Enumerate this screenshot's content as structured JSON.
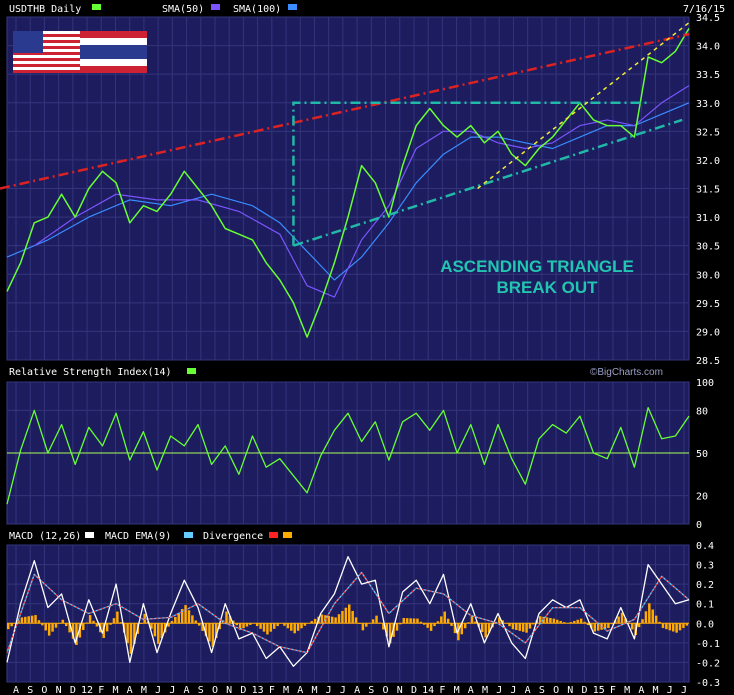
{
  "chart_data": [
    {
      "type": "line",
      "title": "USDTHB Daily",
      "date_label": "7/16/15",
      "legend": [
        {
          "label": "USDTHB Daily",
          "color": "#66ff33"
        },
        {
          "label": "SMA(50)",
          "color": "#7a55ff"
        },
        {
          "label": "SMA(100)",
          "color": "#3a8cff"
        }
      ],
      "ylim": [
        28.5,
        34.5
      ],
      "yticks": [
        "34.5",
        "34.0",
        "33.5",
        "33.0",
        "32.5",
        "32.0",
        "31.5",
        "31.0",
        "30.5",
        "30.0",
        "29.5",
        "29.0",
        "28.5"
      ],
      "annotation": [
        "ASCENDING TRIANGLE",
        "BREAK OUT"
      ],
      "series": [
        {
          "name": "USDTHB Daily",
          "color": "#66ff33",
          "x": [
            0,
            2,
            4,
            6,
            8,
            10,
            12,
            14,
            16,
            18,
            20,
            22,
            24,
            26,
            28,
            30,
            32,
            34,
            36,
            38,
            40,
            42,
            44,
            46,
            48,
            50,
            52,
            54,
            56,
            58,
            60,
            62,
            64,
            66,
            68,
            70,
            72,
            74,
            76,
            78,
            80,
            82,
            84,
            86,
            88,
            90,
            92,
            94,
            96,
            98,
            100
          ],
          "y": [
            29.7,
            30.2,
            30.9,
            31.0,
            31.4,
            31.0,
            31.5,
            31.8,
            31.6,
            30.9,
            31.2,
            31.1,
            31.4,
            31.8,
            31.5,
            31.2,
            30.8,
            30.7,
            30.6,
            30.2,
            29.9,
            29.5,
            28.9,
            29.5,
            30.2,
            31.0,
            31.9,
            31.6,
            31.0,
            31.9,
            32.6,
            32.9,
            32.6,
            32.4,
            32.6,
            32.3,
            32.5,
            32.1,
            31.9,
            32.2,
            32.4,
            32.7,
            33.0,
            32.7,
            32.6,
            32.6,
            32.4,
            33.8,
            33.7,
            33.9,
            34.3
          ]
        },
        {
          "name": "SMA(50)",
          "color": "#7a55ff",
          "x": [
            4,
            10,
            16,
            22,
            28,
            34,
            40,
            44,
            48,
            52,
            56,
            60,
            64,
            68,
            72,
            76,
            80,
            84,
            88,
            92,
            96,
            100
          ],
          "y": [
            30.5,
            31.0,
            31.4,
            31.3,
            31.3,
            31.1,
            30.7,
            29.8,
            29.6,
            30.6,
            31.2,
            32.2,
            32.5,
            32.5,
            32.3,
            32.2,
            32.3,
            32.6,
            32.7,
            32.6,
            33.0,
            33.3
          ]
        },
        {
          "name": "SMA(100)",
          "color": "#3a8cff",
          "x": [
            0,
            6,
            12,
            18,
            24,
            30,
            36,
            40,
            44,
            48,
            52,
            56,
            60,
            64,
            68,
            72,
            76,
            80,
            84,
            88,
            92,
            96,
            100
          ],
          "y": [
            30.3,
            30.6,
            31.0,
            31.3,
            31.2,
            31.4,
            31.2,
            30.9,
            30.4,
            29.9,
            30.3,
            30.9,
            31.6,
            32.1,
            32.4,
            32.4,
            32.3,
            32.2,
            32.4,
            32.6,
            32.6,
            32.8,
            33.0
          ]
        }
      ]
    },
    {
      "type": "line",
      "title": "Relative Strength Index(14)",
      "ylim": [
        0,
        100
      ],
      "yticks": [
        "100",
        "80",
        "50",
        "20",
        "0"
      ],
      "reference": 50,
      "watermark": "©BigCharts.com",
      "series": [
        {
          "name": "Relative Strength Index(14)",
          "color": "#66ff33",
          "x": [
            0,
            2,
            4,
            6,
            8,
            10,
            12,
            14,
            16,
            18,
            20,
            22,
            24,
            26,
            28,
            30,
            32,
            34,
            36,
            38,
            40,
            42,
            44,
            46,
            48,
            50,
            52,
            54,
            56,
            58,
            60,
            62,
            64,
            66,
            68,
            70,
            72,
            74,
            76,
            78,
            80,
            82,
            84,
            86,
            88,
            90,
            92,
            94,
            96,
            98,
            100
          ],
          "y": [
            14,
            52,
            80,
            50,
            70,
            42,
            68,
            55,
            78,
            45,
            65,
            38,
            62,
            55,
            70,
            42,
            55,
            35,
            62,
            40,
            46,
            34,
            22,
            48,
            66,
            78,
            58,
            72,
            45,
            72,
            78,
            66,
            80,
            50,
            70,
            42,
            70,
            46,
            28,
            60,
            70,
            64,
            76,
            50,
            46,
            68,
            40,
            82,
            60,
            62,
            76
          ]
        }
      ]
    },
    {
      "type": "line",
      "title": "MACD",
      "legend": [
        {
          "label": "MACD (12,26)",
          "color": "#ffffff"
        },
        {
          "label": "MACD EMA(9)",
          "color": "#66ccff"
        },
        {
          "label": "Divergence",
          "color": "#ff2222"
        },
        {
          "label": "",
          "color": "#ffaa00"
        }
      ],
      "ylim": [
        -0.3,
        0.4
      ],
      "yticks": [
        "0.4",
        "0.3",
        "0.2",
        "0.1",
        "0.0",
        "-0.1",
        "-0.2",
        "-0.3"
      ],
      "series": [
        {
          "name": "MACD (12,26)",
          "color": "#ffffff",
          "x": [
            0,
            2,
            4,
            6,
            8,
            10,
            12,
            14,
            16,
            18,
            20,
            22,
            24,
            26,
            28,
            30,
            32,
            34,
            36,
            38,
            40,
            42,
            44,
            46,
            48,
            50,
            52,
            54,
            56,
            58,
            60,
            62,
            64,
            66,
            68,
            70,
            72,
            74,
            76,
            78,
            80,
            82,
            84,
            86,
            88,
            90,
            92,
            94,
            96,
            98,
            100
          ],
          "y": [
            -0.2,
            0.1,
            0.32,
            0.08,
            0.15,
            -0.1,
            0.12,
            -0.05,
            0.2,
            -0.2,
            0.1,
            -0.15,
            0.05,
            0.22,
            0.08,
            -0.15,
            0.1,
            -0.08,
            -0.05,
            -0.18,
            -0.12,
            -0.22,
            -0.15,
            0.05,
            0.15,
            0.34,
            0.2,
            0.22,
            -0.12,
            0.16,
            0.22,
            0.1,
            0.25,
            -0.05,
            0.1,
            -0.1,
            0.05,
            -0.1,
            -0.18,
            0.05,
            0.12,
            0.08,
            0.12,
            -0.05,
            -0.08,
            0.08,
            -0.08,
            0.3,
            0.2,
            0.1,
            0.12
          ]
        },
        {
          "name": "MACD EMA(9)",
          "color": "#66ccff",
          "x": [
            0,
            4,
            8,
            12,
            16,
            20,
            24,
            28,
            32,
            36,
            40,
            44,
            48,
            52,
            56,
            60,
            64,
            68,
            72,
            76,
            80,
            84,
            88,
            92,
            96,
            100
          ],
          "y": [
            -0.15,
            0.25,
            0.12,
            0.05,
            0.1,
            0.02,
            0.03,
            0.1,
            0.0,
            -0.05,
            -0.12,
            -0.15,
            0.1,
            0.26,
            0.05,
            0.18,
            0.15,
            0.04,
            0.0,
            -0.1,
            0.08,
            0.08,
            -0.04,
            0.02,
            0.24,
            0.12
          ]
        }
      ]
    }
  ],
  "x_axis_labels": [
    "A",
    "S",
    "O",
    "N",
    "D",
    "12",
    "F",
    "M",
    "A",
    "M",
    "J",
    "J",
    "A",
    "S",
    "O",
    "N",
    "D",
    "13",
    "F",
    "M",
    "A",
    "M",
    "J",
    "J",
    "A",
    "S",
    "O",
    "N",
    "D",
    "14",
    "F",
    "M",
    "A",
    "M",
    "J",
    "J",
    "A",
    "S",
    "O",
    "N",
    "D",
    "15",
    "F",
    "M",
    "A",
    "M",
    "J",
    "J"
  ]
}
